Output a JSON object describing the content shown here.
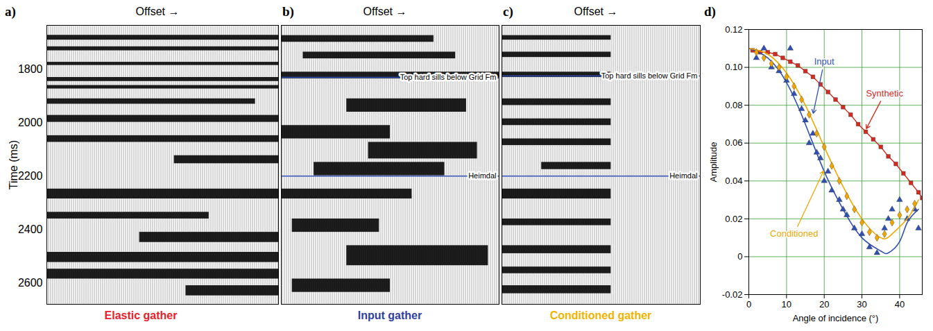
{
  "chart_data": [
    {
      "type": "seismic_gather",
      "letter": "a)",
      "x_label": "Offset →",
      "y_label": "Time (ms)",
      "title": "Elastic gather",
      "color": "#e8212a",
      "xlim": [
        0,
        1
      ],
      "ylim": [
        1635,
        2680
      ],
      "yticks": [
        1800,
        2000,
        2200,
        2400,
        2600
      ],
      "tick_labels": "y",
      "events": [
        {
          "top": 1672,
          "base": 1690,
          "from": 0,
          "to": 1
        },
        {
          "top": 1715,
          "base": 1730,
          "from": 0,
          "to": 1
        },
        {
          "top": 1773,
          "base": 1785,
          "from": 0,
          "to": 1
        },
        {
          "top": 1830,
          "base": 1845,
          "from": 0,
          "to": 1
        },
        {
          "top": 1860,
          "base": 1873,
          "from": 0,
          "to": 1
        },
        {
          "top": 1910,
          "base": 1930,
          "from": 0,
          "to": 0.9
        },
        {
          "top": 1972,
          "base": 1998,
          "from": 0,
          "to": 1
        },
        {
          "top": 2048,
          "base": 2073,
          "from": 0,
          "to": 1
        },
        {
          "top": 2123,
          "base": 2153,
          "from": 0.55,
          "to": 1
        },
        {
          "top": 2248,
          "base": 2285,
          "from": 0,
          "to": 1
        },
        {
          "top": 2335,
          "base": 2360,
          "from": 0,
          "to": 0.7
        },
        {
          "top": 2410,
          "base": 2448,
          "from": 0.4,
          "to": 1
        },
        {
          "top": 2485,
          "base": 2523,
          "from": 0,
          "to": 1
        },
        {
          "top": 2548,
          "base": 2585,
          "from": 0,
          "to": 1
        },
        {
          "top": 2610,
          "base": 2648,
          "from": 0.6,
          "to": 1
        }
      ],
      "horizons": []
    },
    {
      "type": "seismic_gather",
      "letter": "b)",
      "x_label": "Offset →",
      "title": "Input gather",
      "color": "#2f3fa0",
      "xlim": [
        0,
        1
      ],
      "ylim": [
        1635,
        2680
      ],
      "tick_labels": false,
      "events": [
        {
          "top": 1673,
          "base": 1698,
          "from": 0,
          "to": 0.7
        },
        {
          "top": 1735,
          "base": 1760,
          "from": 0.1,
          "to": 0.8
        },
        {
          "top": 1810,
          "base": 1835,
          "from": 0,
          "to": 1
        },
        {
          "top": 1910,
          "base": 1960,
          "from": 0.3,
          "to": 0.85
        },
        {
          "top": 2010,
          "base": 2060,
          "from": 0,
          "to": 0.5
        },
        {
          "top": 2073,
          "base": 2135,
          "from": 0.4,
          "to": 0.9
        },
        {
          "top": 2148,
          "base": 2198,
          "from": 0.15,
          "to": 0.75
        },
        {
          "top": 2248,
          "base": 2285,
          "from": 0,
          "to": 0.6
        },
        {
          "top": 2360,
          "base": 2410,
          "from": 0.05,
          "to": 0.45
        },
        {
          "top": 2460,
          "base": 2535,
          "from": 0.3,
          "to": 0.95
        },
        {
          "top": 2585,
          "base": 2635,
          "from": 0.05,
          "to": 0.5
        }
      ],
      "horizons": [
        {
          "name": "Top hard sills below Grid Fm",
          "time": 1830,
          "color": "#3050c0"
        },
        {
          "name": "Heimdal",
          "time": 2200,
          "color": "#3050c0"
        }
      ]
    },
    {
      "type": "seismic_gather",
      "letter": "c)",
      "x_label": "Offset →",
      "title": "Conditioned gather",
      "color": "#f0b400",
      "xlim": [
        0,
        1
      ],
      "ylim": [
        1635,
        2680
      ],
      "tick_labels": false,
      "events": [
        {
          "top": 1673,
          "base": 1690,
          "from": 0,
          "to": 0.55
        },
        {
          "top": 1735,
          "base": 1755,
          "from": 0,
          "to": 0.55
        },
        {
          "top": 1810,
          "base": 1830,
          "from": 0,
          "to": 0.55
        },
        {
          "top": 1910,
          "base": 1935,
          "from": 0,
          "to": 0.55
        },
        {
          "top": 1985,
          "base": 2010,
          "from": 0,
          "to": 0.55
        },
        {
          "top": 2060,
          "base": 2085,
          "from": 0,
          "to": 0.55
        },
        {
          "top": 2148,
          "base": 2175,
          "from": 0.2,
          "to": 0.55
        },
        {
          "top": 2248,
          "base": 2285,
          "from": 0,
          "to": 0.55
        },
        {
          "top": 2360,
          "base": 2385,
          "from": 0,
          "to": 0.55
        },
        {
          "top": 2460,
          "base": 2490,
          "from": 0,
          "to": 0.55
        },
        {
          "top": 2540,
          "base": 2565,
          "from": 0,
          "to": 0.55
        },
        {
          "top": 2610,
          "base": 2640,
          "from": 0,
          "to": 0.55
        }
      ],
      "horizons": [
        {
          "name": "Top hard sills below Grid Fm",
          "time": 1825,
          "color": "#3050c0"
        },
        {
          "name": "Heimdal",
          "time": 2200,
          "color": "#3050c0"
        }
      ]
    },
    {
      "type": "scatter",
      "letter": "d)",
      "x_label": "Angle of incidence (°)",
      "y_label": "Amplitude",
      "xlim": [
        0,
        46
      ],
      "xticks": [
        0,
        10,
        20,
        30,
        40
      ],
      "ylim": [
        -0.02,
        0.12
      ],
      "yticks": [
        -0.02,
        0,
        0.02,
        0.04,
        0.06,
        0.08,
        {
          "value": 0.1,
          "label": "0.10"
        },
        0.12
      ],
      "grid": true,
      "series": [
        {
          "name": "Synthetic",
          "color": "#d42a1f",
          "marker": "square",
          "line_style": "solid",
          "x": [
            1,
            3,
            5,
            7,
            9,
            11,
            13,
            15,
            17,
            19,
            21,
            23,
            25,
            27,
            29,
            31,
            33,
            35,
            37,
            39,
            41,
            43,
            45,
            46
          ],
          "values": [
            0.109,
            0.108,
            0.108,
            0.107,
            0.105,
            0.103,
            0.101,
            0.098,
            0.095,
            0.091,
            0.087,
            0.083,
            0.079,
            0.075,
            0.07,
            0.066,
            0.062,
            0.058,
            0.053,
            0.049,
            0.044,
            0.039,
            0.034,
            0.031
          ]
        },
        {
          "name": "Input",
          "color": "#2f4fb5",
          "marker": "triangle",
          "x": [
            2,
            4,
            6,
            8,
            10,
            11,
            12,
            14,
            15,
            16,
            17,
            18,
            19,
            20,
            21,
            22,
            24,
            25,
            26,
            28,
            30,
            32,
            34,
            36,
            37,
            38,
            40,
            42,
            44,
            45
          ],
          "values": [
            0.105,
            0.11,
            0.1,
            0.098,
            0.093,
            0.11,
            0.086,
            0.078,
            0.072,
            0.06,
            0.065,
            0.055,
            0.052,
            0.04,
            0.045,
            0.035,
            0.03,
            0.025,
            0.022,
            0.015,
            0.012,
            0.005,
            0.002,
            0.015,
            0.02,
            0.025,
            0.03,
            0.02,
            0.025,
            0.015
          ],
          "fit": {
            "x": [
              0,
              5,
              10,
              15,
              20,
              25,
              30,
              35,
              37,
              40,
              42,
              45
            ],
            "values": [
              0.11,
              0.105,
              0.092,
              0.07,
              0.045,
              0.025,
              0.01,
              0.003,
              0.002,
              0.008,
              0.018,
              0.025
            ]
          }
        },
        {
          "name": "Conditioned",
          "color": "#f0a800",
          "marker": "diamond",
          "x": [
            2,
            4,
            6,
            8,
            10,
            12,
            14,
            16,
            18,
            20,
            22,
            24,
            26,
            28,
            30,
            32,
            34,
            36,
            38,
            40,
            42,
            44
          ],
          "values": [
            0.108,
            0.105,
            0.102,
            0.1,
            0.095,
            0.09,
            0.083,
            0.075,
            0.065,
            0.058,
            0.048,
            0.04,
            0.032,
            0.025,
            0.018,
            0.013,
            0.01,
            0.012,
            0.018,
            0.022,
            0.025,
            0.028
          ],
          "fit": {
            "x": [
              0,
              5,
              10,
              15,
              20,
              25,
              30,
              35,
              38,
              42,
              45
            ],
            "values": [
              0.11,
              0.107,
              0.097,
              0.08,
              0.058,
              0.037,
              0.02,
              0.01,
              0.012,
              0.02,
              0.03
            ]
          }
        }
      ],
      "annotations": [
        {
          "text": "Input",
          "series": "Input",
          "x": 20,
          "y": 0.103,
          "point": [
            17,
            0.075
          ]
        },
        {
          "text": "Synthetic",
          "series": "Synthetic",
          "x": 36,
          "y": 0.086,
          "point": [
            31,
            0.067
          ]
        },
        {
          "text": "Conditioned",
          "series": "Conditioned",
          "x": 12,
          "y": 0.012,
          "point": [
            20,
            0.046
          ]
        }
      ]
    }
  ]
}
